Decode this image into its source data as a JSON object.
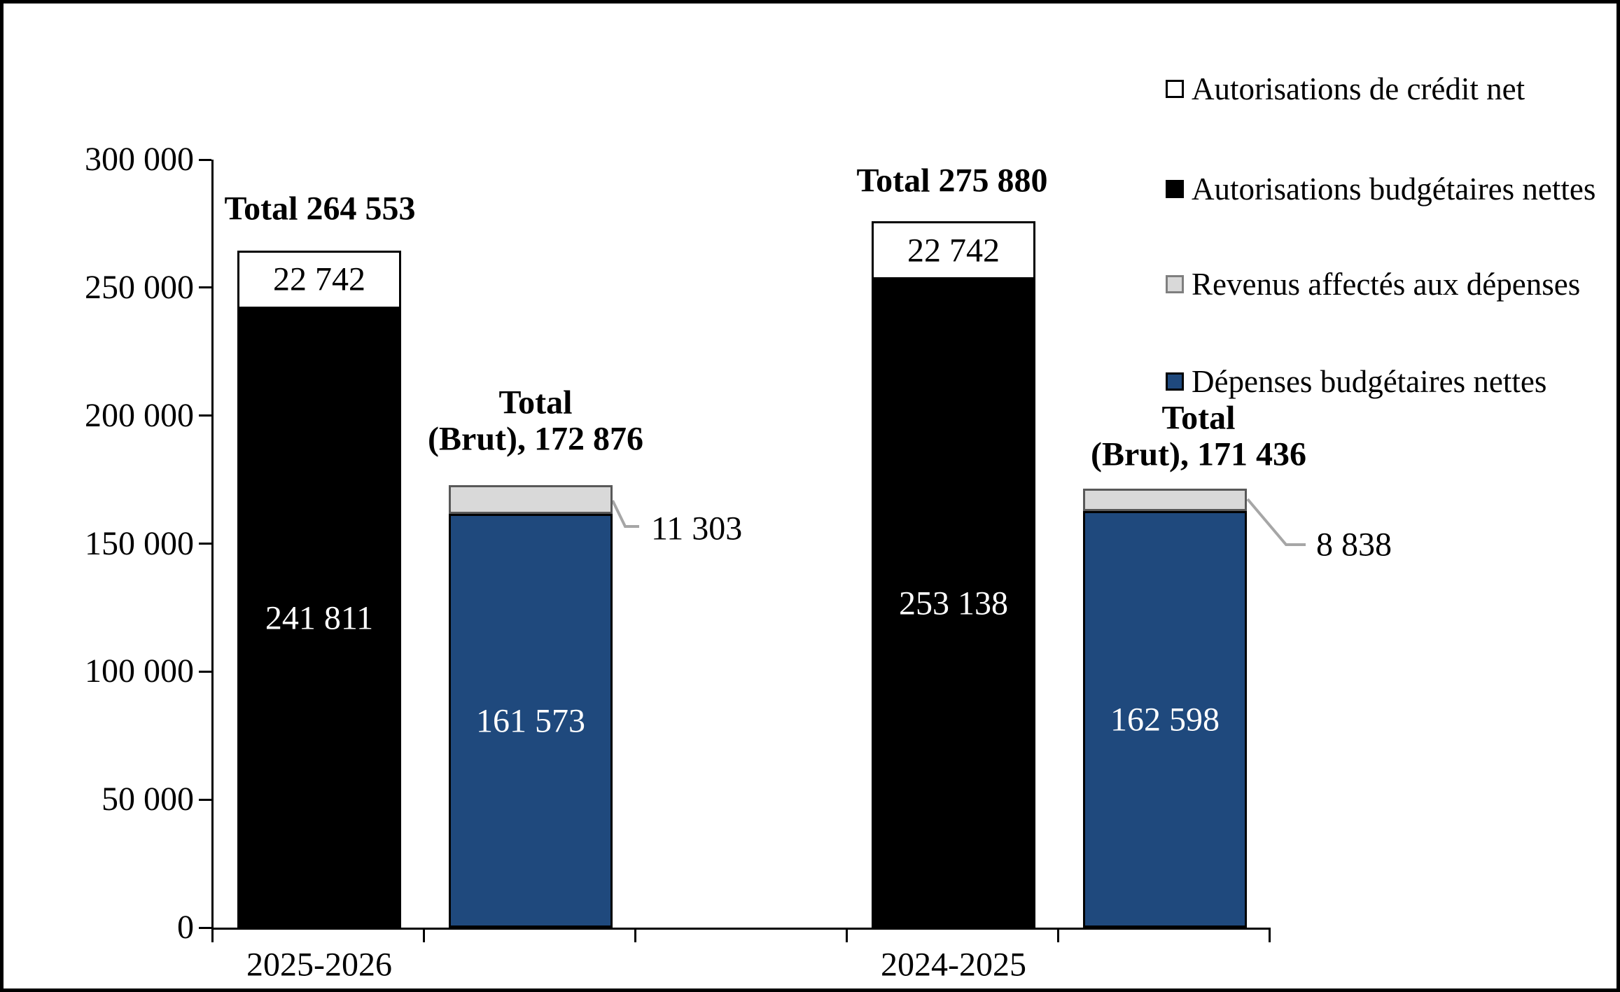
{
  "chart_data": {
    "type": "bar",
    "stacked": true,
    "grid": false,
    "legend_position": "right",
    "title": "",
    "categories": [
      "2025-2026",
      "2024-2025"
    ],
    "ylim": [
      0,
      300000
    ],
    "ytick_step": 50000,
    "ytick_labels": [
      "0",
      "50 000",
      "100 000",
      "150 000",
      "200 000",
      "250 000",
      "300 000"
    ],
    "series": [
      {
        "name": "Autorisations de crédit net",
        "values": [
          22742,
          22742
        ],
        "fill": "#FFFFFF",
        "border": "#000000"
      },
      {
        "name": "Autorisations budgétaires nettes",
        "values": [
          241811,
          253138
        ],
        "fill": "#000000",
        "border": "#000000"
      },
      {
        "name": "Revenus affectés aux dépenses",
        "values": [
          11303,
          8838
        ],
        "fill": "#D9D9D9",
        "border": "#595959"
      },
      {
        "name": "Dépenses budgétaires nettes",
        "values": [
          161573,
          162598
        ],
        "fill": "#1F497D",
        "border": "#000000"
      }
    ],
    "legend": [
      {
        "label": "Autorisations de crédit net",
        "fill": "#FFFFFF",
        "border": "#000000"
      },
      {
        "label": "Autorisations budgétaires nettes",
        "fill": "#000000",
        "border": "#000000"
      },
      {
        "label": "Revenus affectés aux dépenses",
        "fill": "#D9D9D9",
        "border": "#7F7F7F"
      },
      {
        "label": "Dépenses budgétaires nettes",
        "fill": "#1F497D",
        "border": "#000000"
      }
    ],
    "bars": [
      {
        "slot": 0,
        "category": "2025-2026",
        "total_lines": [
          "Total 264 553"
        ],
        "segments": [
          {
            "series": "Autorisations budgétaires nettes",
            "value": 241811,
            "label": "241 811",
            "fill": "#000000",
            "border": "#000000",
            "label_color": "#FFFFFF"
          },
          {
            "series": "Autorisations de crédit net",
            "value": 22742,
            "label": "22 742",
            "fill": "#FFFFFF",
            "border": "#000000",
            "label_color": "#000000"
          }
        ]
      },
      {
        "slot": 1,
        "category": "",
        "total_lines": [
          "Total",
          "(Brut), 172 876"
        ],
        "segments": [
          {
            "series": "Dépenses budgétaires nettes",
            "value": 161573,
            "label": "161 573",
            "fill": "#1F497D",
            "border": "#000000",
            "label_color": "#FFFFFF"
          },
          {
            "series": "Revenus affectés aux dépenses",
            "value": 11303,
            "label": "",
            "fill": "#D9D9D9",
            "border": "#595959",
            "label_color": "#000000"
          }
        ]
      },
      {
        "slot": 3,
        "category": "2024-2025",
        "total_lines": [
          "Total 275 880"
        ],
        "segments": [
          {
            "series": "Autorisations budgétaires nettes",
            "value": 253138,
            "label": "253 138",
            "fill": "#000000",
            "border": "#000000",
            "label_color": "#FFFFFF"
          },
          {
            "series": "Autorisations de crédit net",
            "value": 22742,
            "label": "22 742",
            "fill": "#FFFFFF",
            "border": "#000000",
            "label_color": "#000000"
          }
        ]
      },
      {
        "slot": 4,
        "category": "",
        "total_lines": [
          "Total",
          "(Brut), 171 436"
        ],
        "segments": [
          {
            "series": "Dépenses budgétaires nettes",
            "value": 162598,
            "label": "162 598",
            "fill": "#1F497D",
            "border": "#000000",
            "label_color": "#FFFFFF"
          },
          {
            "series": "Revenus affectés aux dépenses",
            "value": 8838,
            "label": "",
            "fill": "#D9D9D9",
            "border": "#595959",
            "label_color": "#000000"
          }
        ]
      }
    ],
    "x_axis_labels": [
      {
        "label": "2025-2026",
        "slot": 0
      },
      {
        "label": "2024-2025",
        "slot": 3
      }
    ],
    "callouts": [
      {
        "text": "11 303",
        "series": "Revenus affectés aux dépenses",
        "category": "2025-2026"
      },
      {
        "text": "8 838",
        "series": "Revenus affectés aux dépenses",
        "category": "2024-2025"
      }
    ],
    "colors": {
      "blue": "#1F497D",
      "gray": "#D9D9D9",
      "black": "#000000",
      "white": "#FFFFFF",
      "callout_line": "#A6A6A6"
    }
  }
}
